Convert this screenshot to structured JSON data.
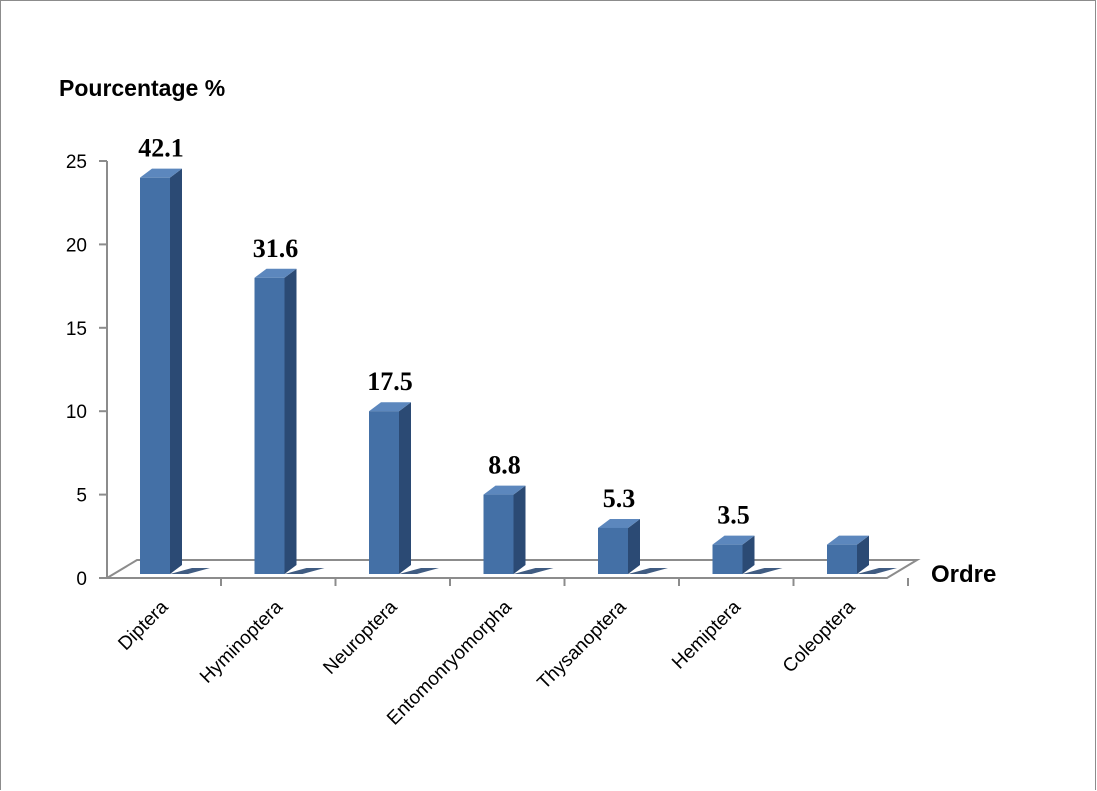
{
  "chart_data": {
    "type": "bar",
    "ylabel": "Pourcentage %",
    "xlabel": "Ordre",
    "categories": [
      "Diptera",
      "Hyminoptera",
      "Neuroptera",
      "Entomonryomorpha",
      "Thysanoptera",
      "Hemiptera",
      "Coleoptera"
    ],
    "values": [
      24,
      18,
      10,
      5,
      3,
      2,
      2
    ],
    "data_labels": [
      "42.1",
      "31.6",
      "17.5",
      "8.8",
      "5.3",
      "3.5",
      ""
    ],
    "ylim": [
      0,
      25
    ],
    "yticks": [
      "0",
      "5",
      "10",
      "15",
      "20",
      "25"
    ],
    "grid": false,
    "legend": "none",
    "style": "3d-column",
    "colors": {
      "bar_front": "#4470a6",
      "bar_side": "#2b4a74",
      "bar_top": "#5c87bd",
      "axis": "#8c8c8c",
      "text": "#000000"
    }
  }
}
